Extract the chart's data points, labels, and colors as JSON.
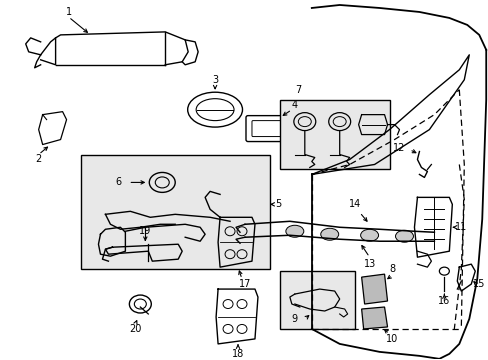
{
  "bg_color": "#ffffff",
  "line_color": "#000000",
  "fig_width": 4.89,
  "fig_height": 3.6,
  "dpi": 100,
  "gray_fill": "#e8e8e8",
  "light_gray": "#d0d0d0"
}
